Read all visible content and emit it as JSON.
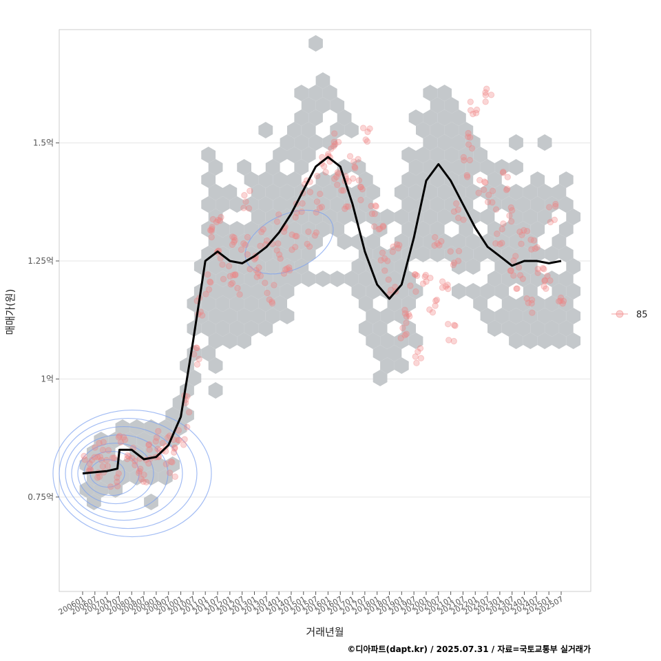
{
  "chart_data": {
    "type": "scatter",
    "xlabel": "거래년월",
    "ylabel": "매매가(원)",
    "caption": "©디아파트(dapt.kr) / 2025.07.31 / 자료=국토교통부 실거래가",
    "legend": {
      "position": "right",
      "entries": [
        "85"
      ]
    },
    "grid": true,
    "ylim": [
      0.55,
      1.74
    ],
    "y_ticks": [
      {
        "value": 0.75,
        "label": "0.75억"
      },
      {
        "value": 1.0,
        "label": "1억"
      },
      {
        "value": 1.25,
        "label": "1.25억"
      },
      {
        "value": 1.5,
        "label": "1.5억"
      }
    ],
    "x_ticks": [
      "200601",
      "200607",
      "200701",
      "200707",
      "200801",
      "200807",
      "200901",
      "200907",
      "201001",
      "201007",
      "201101",
      "201107",
      "201201",
      "201207",
      "201301",
      "201307",
      "201401",
      "201407",
      "201501",
      "201507",
      "201601",
      "201607",
      "201701",
      "201707",
      "201801",
      "201807",
      "201901",
      "201907",
      "202001",
      "202007",
      "202101",
      "202107",
      "202201",
      "202207",
      "202301",
      "202307",
      "202401",
      "202407",
      "202501",
      "202507"
    ],
    "xlim": [
      "200507",
      "201001x"
    ],
    "series": [
      {
        "name": "85",
        "kind": "trend",
        "x": [
          "200601",
          "200701",
          "200706",
          "200707",
          "200801",
          "200807",
          "200901",
          "200907",
          "201001",
          "201007",
          "201101",
          "201107",
          "201201",
          "201207",
          "201301",
          "201307",
          "201401",
          "201407",
          "201501",
          "201507",
          "201601",
          "201607",
          "201701",
          "201707",
          "201801",
          "201807",
          "201901",
          "201907",
          "202001",
          "202007",
          "202101",
          "202107",
          "202201",
          "202207",
          "202301",
          "202307",
          "202401",
          "202407",
          "202501",
          "202507"
        ],
        "y": [
          0.8,
          0.805,
          0.81,
          0.85,
          0.85,
          0.83,
          0.835,
          0.86,
          0.92,
          1.08,
          1.25,
          1.27,
          1.25,
          1.245,
          1.26,
          1.28,
          1.31,
          1.35,
          1.4,
          1.45,
          1.47,
          1.45,
          1.37,
          1.27,
          1.2,
          1.17,
          1.2,
          1.3,
          1.42,
          1.455,
          1.42,
          1.37,
          1.32,
          1.28,
          1.26,
          1.24,
          1.25,
          1.25,
          1.245,
          1.25
        ]
      },
      {
        "name": "85",
        "kind": "points",
        "x": [
          "200604",
          "200606",
          "200609",
          "200611",
          "200703",
          "200705",
          "200709",
          "200712",
          "200803",
          "200806",
          "200809",
          "200812",
          "200903",
          "200906",
          "200908",
          "200911",
          "201002",
          "201005",
          "201008",
          "201010",
          "201102",
          "201104",
          "201107",
          "201109",
          "201112",
          "201203",
          "201205",
          "201208",
          "201210",
          "201301",
          "201304",
          "201306",
          "201309",
          "201312",
          "201402",
          "201405",
          "201408",
          "201411",
          "201502",
          "201505",
          "201508",
          "201510",
          "201601",
          "201604",
          "201606",
          "201609",
          "201611",
          "201702",
          "201705",
          "201708",
          "201711",
          "201802",
          "201805",
          "201808",
          "201810",
          "201901",
          "201904",
          "201907",
          "201910",
          "202001",
          "202004",
          "202007",
          "202010",
          "202101",
          "202103",
          "202105",
          "202108",
          "202110",
          "202201",
          "202204",
          "202207",
          "202209",
          "202212",
          "202303",
          "202305",
          "202308",
          "202310",
          "202401",
          "202404",
          "202406",
          "202409",
          "202412",
          "202503",
          "202506"
        ],
        "y": [
          0.82,
          0.84,
          0.8,
          0.85,
          0.83,
          0.79,
          0.86,
          0.84,
          0.82,
          0.8,
          0.84,
          0.87,
          0.83,
          0.86,
          0.81,
          0.85,
          0.88,
          0.95,
          1.05,
          1.15,
          1.2,
          1.3,
          1.35,
          1.25,
          1.22,
          1.3,
          1.2,
          1.28,
          1.38,
          1.25,
          1.22,
          1.3,
          1.18,
          1.27,
          1.33,
          1.24,
          1.29,
          1.35,
          1.4,
          1.3,
          1.37,
          1.45,
          1.48,
          1.42,
          1.5,
          1.38,
          1.44,
          1.46,
          1.4,
          1.52,
          1.35,
          1.32,
          1.25,
          1.2,
          1.28,
          1.1,
          1.15,
          1.2,
          1.05,
          1.22,
          1.15,
          1.3,
          1.2,
          1.1,
          1.25,
          1.35,
          1.45,
          1.5,
          1.58,
          1.4,
          1.6,
          1.38,
          1.3,
          1.42,
          1.35,
          1.25,
          1.2,
          1.3,
          1.15,
          1.28,
          1.22,
          1.2,
          1.35,
          1.18
        ]
      }
    ]
  },
  "colors": {
    "hex": "#c4c8cb",
    "points": "#f08080",
    "trend": "#000000",
    "density": "#7b9ff0",
    "grid": "#e5e5e5",
    "frame": "#cccccc"
  }
}
